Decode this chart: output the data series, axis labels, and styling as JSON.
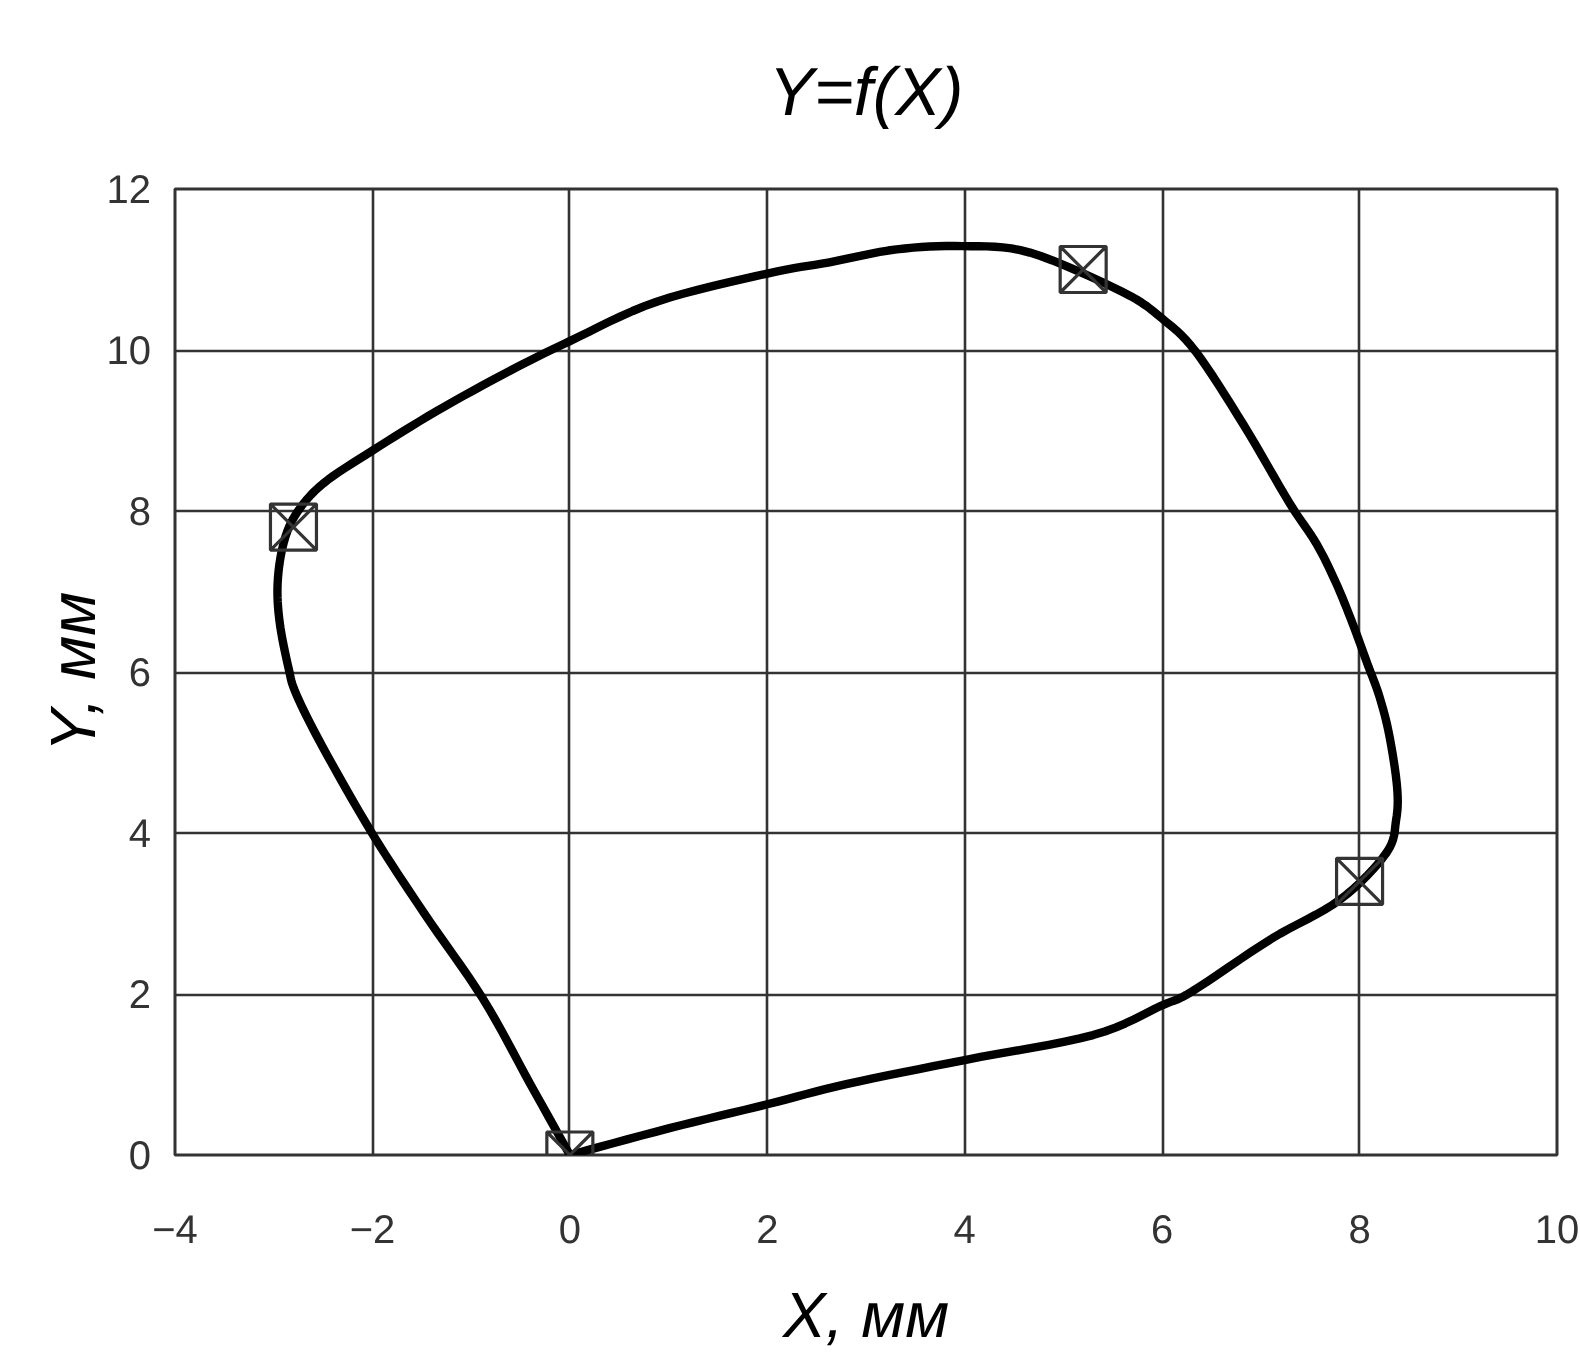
{
  "chart_data": {
    "type": "line",
    "title": "Y=f(X)",
    "xlabel": "X, мм",
    "ylabel": "Y, мм",
    "xlim": [
      -4,
      10
    ],
    "ylim": [
      0,
      12
    ],
    "xticks": [
      -4,
      -2,
      0,
      2,
      4,
      6,
      8,
      10
    ],
    "yticks": [
      0,
      2,
      4,
      6,
      8,
      10,
      12
    ],
    "grid": true,
    "line_style": "solid",
    "series": [
      {
        "color": "#000000",
        "x": [
          0,
          1.0,
          2.0,
          2.8,
          4.0,
          5.3,
          6.0,
          6.3,
          7.1,
          7.8,
          8.27,
          8.37,
          8.38,
          8.3,
          8.2,
          8.08,
          7.93,
          7.76,
          7.56,
          7.29,
          6.82,
          6.34,
          6.0,
          5.6,
          4.66,
          3.98,
          3.31,
          2.63,
          2.0,
          0.88,
          0,
          -0.61,
          -1.35,
          -2.0,
          -2.5,
          -2.77,
          -2.9,
          -2.96,
          -2.94,
          -2.85,
          -2.77,
          -2.5,
          -2.0,
          -1.48,
          -0.88,
          -0.4,
          0,
          1.0
        ],
        "values": [
          0,
          0.33,
          0.63,
          0.88,
          1.18,
          1.49,
          1.86,
          2.03,
          2.68,
          3.17,
          3.75,
          4.16,
          4.57,
          5.22,
          5.7,
          6.1,
          6.6,
          7.11,
          7.6,
          8.1,
          9.08,
          9.98,
          10.39,
          10.72,
          11.21,
          11.29,
          11.25,
          11.09,
          10.95,
          10.6,
          10.11,
          9.74,
          9.24,
          8.75,
          8.34,
          7.97,
          7.6,
          7.11,
          6.62,
          6.05,
          5.72,
          5.06,
          3.99,
          3.01,
          1.94,
          0.88,
          0,
          0.33
        ]
      },
      {
        "type": "scatter",
        "color": "#333333",
        "marker": "square",
        "x": [
          0,
          -2.8,
          5.2,
          8.0
        ],
        "values": [
          0,
          7.8,
          11.0,
          3.4
        ]
      }
    ]
  }
}
